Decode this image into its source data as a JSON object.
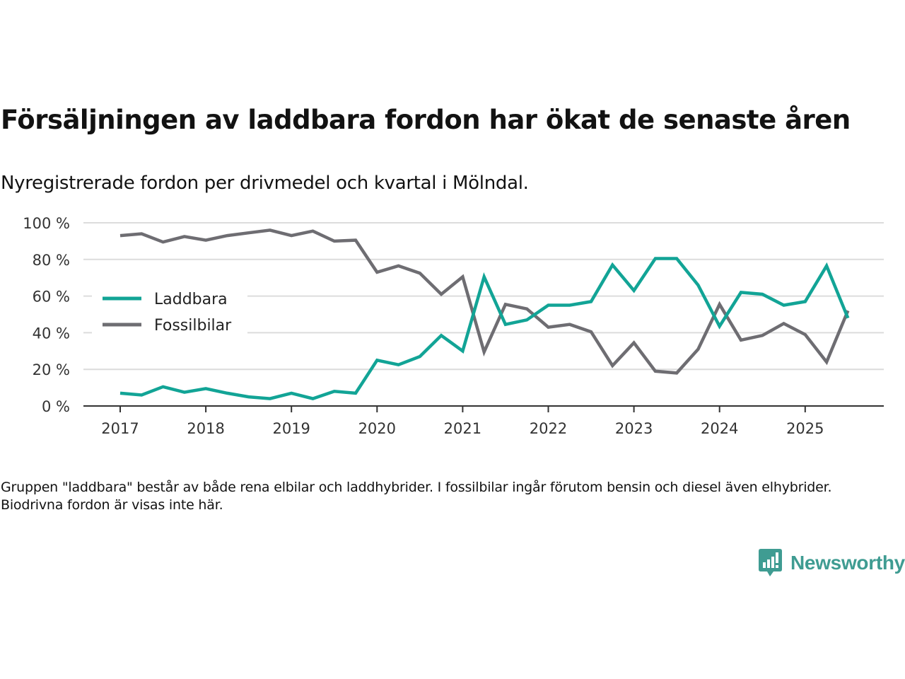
{
  "chart_data": {
    "type": "line",
    "title": "Försäljningen av laddbara fordon har ökat de senaste åren",
    "subtitle": "Nyregistrerade fordon per drivmedel och kvartal i Mölndal.",
    "xlabel": "",
    "ylabel": "",
    "x_start_year": 2017,
    "x_step": "quarter",
    "x_ticks": [
      "2017",
      "2018",
      "2019",
      "2020",
      "2021",
      "2022",
      "2023",
      "2024",
      "2025"
    ],
    "y_ticks": [
      "0 %",
      "20 %",
      "40 %",
      "60 %",
      "80 %",
      "100 %"
    ],
    "ylim": [
      0,
      100
    ],
    "grid": true,
    "legend_position": "left-middle",
    "series": [
      {
        "name": "Laddbara",
        "color": "#12a496",
        "values": [
          7,
          6,
          10.5,
          7.5,
          9.5,
          7,
          5,
          4,
          7,
          4,
          8,
          7,
          25,
          22.5,
          27,
          38.5,
          30,
          70.5,
          44.5,
          47,
          55,
          55,
          57,
          77,
          63,
          80.5,
          80.5,
          66,
          43.5,
          62,
          61,
          55,
          57,
          76.5,
          48
        ]
      },
      {
        "name": "Fossilbilar",
        "color": "#6e6d72",
        "values": [
          93,
          94,
          89.5,
          92.5,
          90.5,
          93,
          94.5,
          96,
          93,
          95.5,
          90,
          90.5,
          73,
          76.5,
          72.5,
          61,
          70.5,
          29.5,
          55.5,
          53,
          43,
          44.5,
          40.5,
          22,
          34.5,
          19,
          18,
          31,
          55.5,
          36,
          38.5,
          45,
          39,
          24,
          52
        ]
      }
    ]
  },
  "note": "Gruppen \"laddbara\" består av både rena elbilar och laddhybrider. I fossilbilar ingår förutom bensin och diesel även elhybrider. Biodrivna fordon är visas inte här.",
  "brand": {
    "name": "Newsworthy",
    "color": "#3f9c92"
  }
}
